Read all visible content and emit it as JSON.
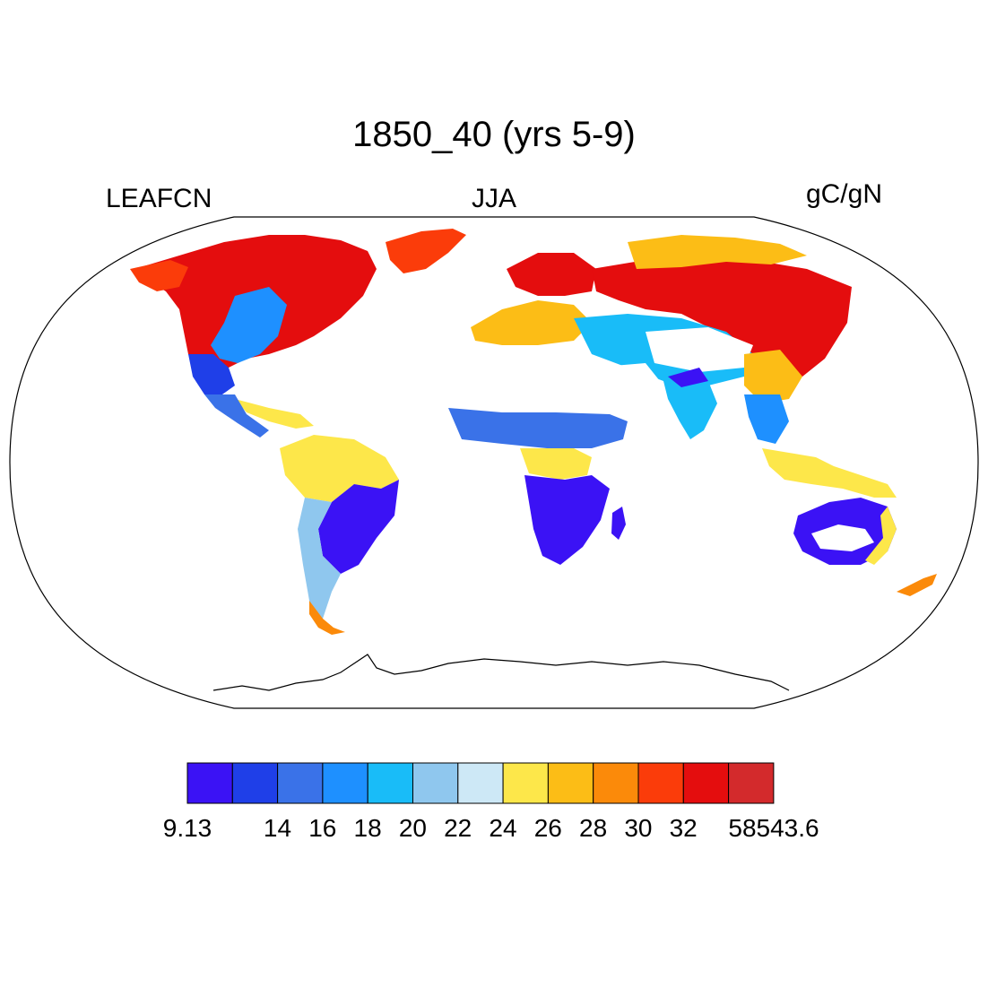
{
  "title": "1850_40 (yrs 5-9)",
  "left_label": "LEAFCN",
  "center_label": "JJA",
  "right_label": "gC/gN",
  "colorbar": {
    "colors": [
      "#3b12f5",
      "#1f3fe8",
      "#3a72e8",
      "#1e90ff",
      "#19bcf8",
      "#8fc7ee",
      "#cde8f6",
      "#fde74a",
      "#fcbd16",
      "#fb8a0a",
      "#fb3c0a",
      "#e40d0e",
      "#d32a2c"
    ],
    "tick_labels": [
      "9.13",
      "14",
      "16",
      "18",
      "20",
      "22",
      "24",
      "26",
      "28",
      "30",
      "32",
      "58543.6"
    ]
  },
  "chart_data": {
    "type": "heatmap",
    "title": "1850_40 (yrs 5-9)",
    "variable": "LEAFCN",
    "season": "JJA",
    "units": "gC/gN",
    "projection": "Robinson",
    "levels": [
      9.13,
      12,
      14,
      16,
      18,
      20,
      22,
      24,
      26,
      28,
      30,
      32,
      58543.6
    ]
  }
}
